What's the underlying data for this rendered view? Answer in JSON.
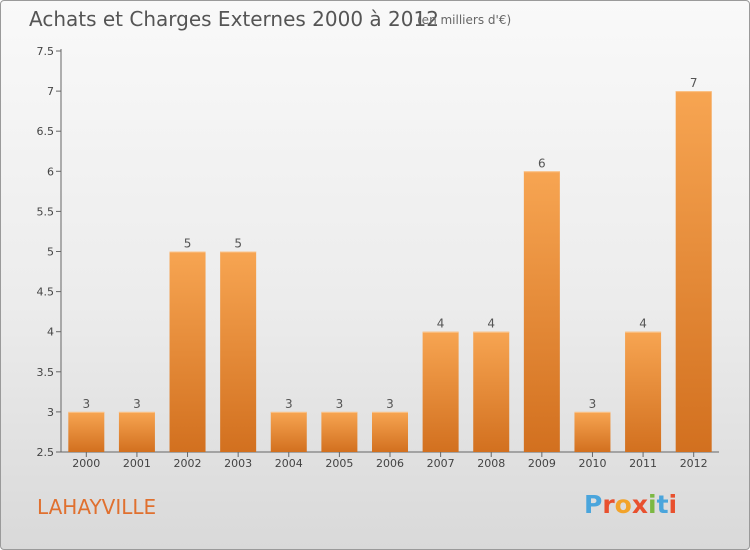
{
  "header": {
    "title": "Achats et Charges Externes 2000 à 2012",
    "unit": "(en milliers d'€)"
  },
  "footer": {
    "commune": "LAHAYVILLE",
    "logo": "Proxiti"
  },
  "colors": {
    "bar_top": "#f7a552",
    "bar_bottom": "#d2701f",
    "commune": "#e0702f",
    "logo_letters": [
      "#4aa5dc",
      "#e8502e",
      "#f2a32a",
      "#e8502e",
      "#7cb843",
      "#4aa5dc",
      "#e8502e"
    ]
  },
  "chart_data": {
    "type": "bar",
    "title": "Achats et Charges Externes 2000 à 2012",
    "xlabel": "",
    "ylabel": "",
    "categories": [
      "2000",
      "2001",
      "2002",
      "2003",
      "2004",
      "2005",
      "2006",
      "2007",
      "2008",
      "2009",
      "2010",
      "2011",
      "2012"
    ],
    "values": [
      3,
      3,
      5,
      5,
      3,
      3,
      3,
      4,
      4,
      6,
      3,
      4,
      7
    ],
    "data_labels": [
      "3",
      "3",
      "5",
      "5",
      "3",
      "3",
      "3",
      "4",
      "4",
      "6",
      "3",
      "4",
      "7"
    ],
    "ylim": [
      2.5,
      7.5
    ],
    "yticks": [
      "2.5",
      "3",
      "3.5",
      "4",
      "4.5",
      "5",
      "5.5",
      "6",
      "6.5",
      "7",
      "7.5"
    ],
    "grid": false,
    "legend": "none"
  }
}
